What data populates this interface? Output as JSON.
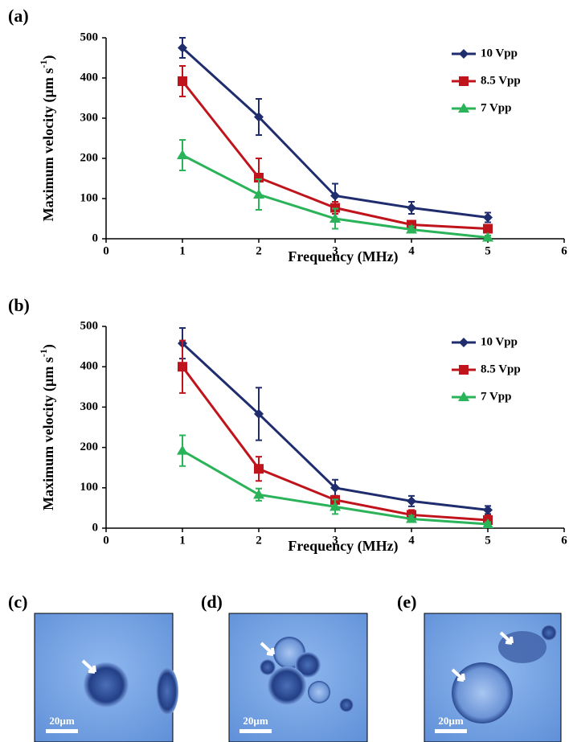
{
  "chart_data": [
    {
      "type": "line",
      "panel_label": "(a)",
      "xlabel": "Frequency (MHz)",
      "ylabel": "Maximum velocity (µm s",
      "ylabel_sup": "-1",
      "ylabel_end": ")",
      "x": [
        1,
        2,
        3,
        4,
        5
      ],
      "xlim": [
        0,
        6
      ],
      "xticks": [
        0,
        1,
        2,
        3,
        4,
        5,
        6
      ],
      "ylim": [
        0,
        500
      ],
      "yticks": [
        0,
        100,
        200,
        300,
        400,
        500
      ],
      "legend": "upper right",
      "series": [
        {
          "name": "10 Vpp",
          "color": "#1f2d6e",
          "marker": "diamond",
          "values": [
            475,
            303,
            107,
            77,
            53
          ],
          "errors": [
            25,
            45,
            30,
            15,
            12
          ]
        },
        {
          "name": "8.5 Vpp",
          "color": "#c0141c",
          "marker": "square",
          "values": [
            392,
            152,
            77,
            35,
            25
          ],
          "errors": [
            38,
            48,
            15,
            10,
            10
          ]
        },
        {
          "name": "7 Vpp",
          "color": "#2bb35a",
          "marker": "triangle",
          "values": [
            208,
            110,
            50,
            23,
            3
          ],
          "errors": [
            38,
            38,
            25,
            8,
            5
          ]
        }
      ]
    },
    {
      "type": "line",
      "panel_label": "(b)",
      "xlabel": "Frequency (MHz)",
      "ylabel": "Maximum velocity (µm s",
      "ylabel_sup": "-1",
      "ylabel_end": ")",
      "x": [
        1,
        2,
        3,
        4,
        5
      ],
      "xlim": [
        0,
        6
      ],
      "xticks": [
        0,
        1,
        2,
        3,
        4,
        5,
        6
      ],
      "ylim": [
        0,
        500
      ],
      "yticks": [
        0,
        100,
        200,
        300,
        400,
        500
      ],
      "legend": "upper right",
      "series": [
        {
          "name": "10 Vpp",
          "color": "#1f2d6e",
          "marker": "diamond",
          "values": [
            458,
            283,
            100,
            67,
            45
          ],
          "errors": [
            38,
            65,
            20,
            13,
            10
          ]
        },
        {
          "name": "8.5 Vpp",
          "color": "#c0141c",
          "marker": "square",
          "values": [
            400,
            147,
            70,
            33,
            20
          ],
          "errors": [
            65,
            30,
            10,
            12,
            12
          ]
        },
        {
          "name": "7 Vpp",
          "color": "#2bb35a",
          "marker": "triangle",
          "values": [
            192,
            83,
            53,
            23,
            10
          ],
          "errors": [
            38,
            15,
            18,
            8,
            5
          ]
        }
      ]
    }
  ],
  "images": [
    {
      "label": "(c)",
      "scale_bar": "20µm"
    },
    {
      "label": "(d)",
      "scale_bar": "20µm"
    },
    {
      "label": "(e)",
      "scale_bar": "20µm"
    }
  ]
}
